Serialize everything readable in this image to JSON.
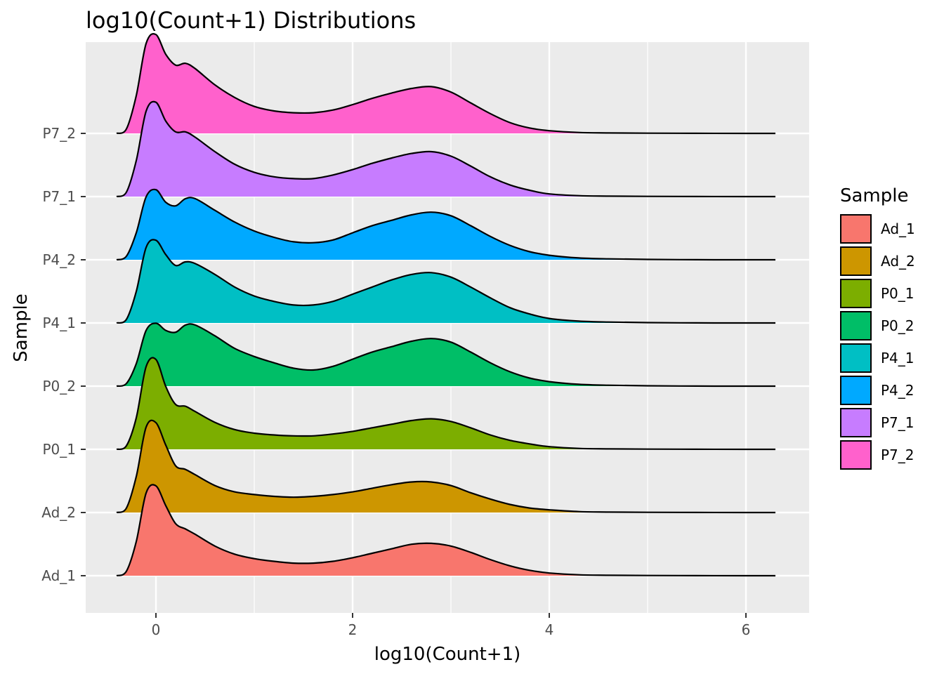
{
  "chart_data": {
    "type": "ridgeline",
    "title": "log10(Count+1) Distributions",
    "xlabel": "log10(Count+1)",
    "ylabel": "Sample",
    "xlim": [
      -0.72,
      6.62
    ],
    "x_ticks": [
      0,
      2,
      4,
      6
    ],
    "x_minor_ticks": [
      1,
      3,
      5
    ],
    "grid": true,
    "legend_title": "Sample",
    "legend_position": "right",
    "density_x": [
      -0.4,
      -0.3,
      -0.2,
      -0.1,
      0.0,
      0.1,
      0.2,
      0.3,
      0.4,
      0.6,
      0.8,
      1.0,
      1.2,
      1.4,
      1.6,
      1.8,
      2.0,
      2.2,
      2.4,
      2.6,
      2.8,
      3.0,
      3.2,
      3.4,
      3.6,
      3.8,
      4.0,
      4.3,
      4.6,
      5.0,
      5.5,
      6.0,
      6.3
    ],
    "series": [
      {
        "name": "Ad_1",
        "color": "#F8766D",
        "density": [
          0.0,
          0.05,
          0.38,
          0.92,
          1.0,
          0.78,
          0.58,
          0.52,
          0.46,
          0.33,
          0.24,
          0.19,
          0.16,
          0.14,
          0.14,
          0.16,
          0.2,
          0.25,
          0.3,
          0.35,
          0.36,
          0.33,
          0.26,
          0.18,
          0.11,
          0.06,
          0.03,
          0.01,
          0.005,
          0.002,
          0.001,
          0.0,
          0.0
        ]
      },
      {
        "name": "Ad_2",
        "color": "#CD9600",
        "density": [
          0.0,
          0.05,
          0.4,
          0.95,
          1.0,
          0.75,
          0.52,
          0.48,
          0.42,
          0.3,
          0.23,
          0.2,
          0.18,
          0.17,
          0.18,
          0.2,
          0.23,
          0.27,
          0.31,
          0.34,
          0.34,
          0.3,
          0.22,
          0.15,
          0.09,
          0.05,
          0.03,
          0.01,
          0.005,
          0.002,
          0.001,
          0.0,
          0.0
        ]
      },
      {
        "name": "P0_1",
        "color": "#7CAE00",
        "density": [
          0.0,
          0.04,
          0.35,
          0.92,
          1.0,
          0.7,
          0.5,
          0.48,
          0.42,
          0.3,
          0.22,
          0.18,
          0.16,
          0.15,
          0.15,
          0.17,
          0.2,
          0.24,
          0.28,
          0.32,
          0.34,
          0.31,
          0.24,
          0.16,
          0.1,
          0.06,
          0.03,
          0.01,
          0.005,
          0.002,
          0.001,
          0.0,
          0.0
        ]
      },
      {
        "name": "P0_2",
        "color": "#00BE67",
        "density": [
          0.0,
          0.03,
          0.25,
          0.62,
          0.7,
          0.62,
          0.6,
          0.68,
          0.68,
          0.56,
          0.42,
          0.33,
          0.26,
          0.2,
          0.18,
          0.22,
          0.3,
          0.38,
          0.44,
          0.5,
          0.53,
          0.49,
          0.38,
          0.26,
          0.16,
          0.09,
          0.05,
          0.02,
          0.01,
          0.004,
          0.001,
          0.0,
          0.0
        ]
      },
      {
        "name": "P4_1",
        "color": "#00BFC4",
        "density": [
          0.0,
          0.04,
          0.35,
          0.84,
          0.92,
          0.76,
          0.64,
          0.68,
          0.66,
          0.54,
          0.4,
          0.3,
          0.24,
          0.2,
          0.2,
          0.24,
          0.32,
          0.4,
          0.48,
          0.54,
          0.56,
          0.51,
          0.4,
          0.28,
          0.17,
          0.1,
          0.05,
          0.02,
          0.01,
          0.004,
          0.001,
          0.0,
          0.0
        ]
      },
      {
        "name": "P4_2",
        "color": "#00A9FF",
        "density": [
          0.0,
          0.04,
          0.3,
          0.7,
          0.78,
          0.64,
          0.6,
          0.68,
          0.68,
          0.55,
          0.42,
          0.32,
          0.25,
          0.2,
          0.19,
          0.22,
          0.3,
          0.38,
          0.44,
          0.5,
          0.53,
          0.49,
          0.38,
          0.26,
          0.16,
          0.09,
          0.05,
          0.02,
          0.01,
          0.004,
          0.001,
          0.0,
          0.0
        ]
      },
      {
        "name": "P7_1",
        "color": "#C77CFF",
        "density": [
          0.0,
          0.05,
          0.4,
          0.95,
          1.05,
          0.84,
          0.72,
          0.72,
          0.66,
          0.5,
          0.36,
          0.27,
          0.22,
          0.2,
          0.2,
          0.24,
          0.3,
          0.37,
          0.43,
          0.48,
          0.5,
          0.45,
          0.34,
          0.22,
          0.13,
          0.07,
          0.03,
          0.01,
          0.005,
          0.002,
          0.001,
          0.0,
          0.0
        ]
      },
      {
        "name": "P7_2",
        "color": "#FF61CC",
        "density": [
          0.0,
          0.05,
          0.42,
          1.0,
          1.1,
          0.88,
          0.76,
          0.78,
          0.72,
          0.54,
          0.4,
          0.3,
          0.25,
          0.23,
          0.23,
          0.26,
          0.32,
          0.39,
          0.45,
          0.5,
          0.52,
          0.46,
          0.34,
          0.22,
          0.12,
          0.06,
          0.03,
          0.01,
          0.005,
          0.002,
          0.001,
          0.0,
          0.0
        ]
      }
    ]
  }
}
